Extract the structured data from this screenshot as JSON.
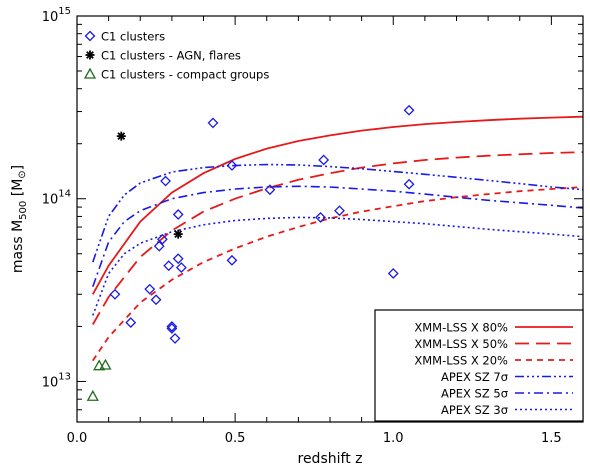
{
  "chart_data": {
    "type": "scatter",
    "xlabel": "redshift z",
    "ylabel": "mass M₅₀₀ [M☉]",
    "ylabel_parts": {
      "prefix": "mass M",
      "sub": "500",
      "suffix": " [M",
      "sym": "⊙",
      "close": "]"
    },
    "xlim": [
      0,
      1.6
    ],
    "ylim": [
      6000000000000.0,
      1000000000000000.0
    ],
    "yscale": "log",
    "x_ticks": [
      0,
      0.5,
      1,
      1.5
    ],
    "x_tick_labels": [
      "0.0",
      "0.5",
      "1.0",
      "1.5"
    ],
    "y_ticks": [
      10000000000000.0,
      100000000000000.0,
      1000000000000000.0
    ],
    "y_tick_labels": [
      {
        "base": "10",
        "exp": "13"
      },
      {
        "base": "10",
        "exp": "14"
      },
      {
        "base": "10",
        "exp": "15"
      }
    ],
    "grid": false,
    "scatter_legend": {
      "placement": "top-left",
      "entries": [
        {
          "label": "C1 clusters",
          "marker": "diamond",
          "color": "#1a1ae6"
        },
        {
          "label": "C1 clusters - AGN, flares",
          "marker": "asterisk",
          "color": "#000000"
        },
        {
          "label": "C1 clusters - compact groups",
          "marker": "triangle",
          "color": "#1e6e1e"
        }
      ]
    },
    "line_legend": {
      "placement": "bottom-right",
      "entries": [
        {
          "label": "XMM-LSS X 80%",
          "color": "#e61a1a",
          "dash": "solid"
        },
        {
          "label": "XMM-LSS X 50%",
          "color": "#e61a1a",
          "dash": "longdash"
        },
        {
          "label": "XMM-LSS X 20%",
          "color": "#e61a1a",
          "dash": "dash"
        },
        {
          "label": "APEX SZ 7σ",
          "color": "#1a1ae6",
          "dash": "dashdotdotdot"
        },
        {
          "label": "APEX SZ 5σ",
          "color": "#1a1ae6",
          "dash": "dashdot"
        },
        {
          "label": "APEX SZ 3σ",
          "color": "#1a1ae6",
          "dash": "dotted"
        }
      ]
    },
    "series": [
      {
        "name": "C1 clusters",
        "marker": "diamond",
        "color": "#1a1ae6",
        "points": [
          [
            0.43,
            260000000000000.0
          ],
          [
            1.05,
            305000000000000.0
          ],
          [
            0.14,
            220000000000000.0
          ],
          [
            0.28,
            125000000000000.0
          ],
          [
            0.49,
            152000000000000.0
          ],
          [
            0.78,
            163000000000000.0
          ],
          [
            0.61,
            112000000000000.0
          ],
          [
            1.05,
            120000000000000.0
          ],
          [
            0.32,
            82000000000000.0
          ],
          [
            0.77,
            79000000000000.0
          ],
          [
            0.83,
            86000000000000.0
          ],
          [
            0.27,
            60000000000000.0
          ],
          [
            0.26,
            55000000000000.0
          ],
          [
            0.32,
            47000000000000.0
          ],
          [
            0.49,
            46000000000000.0
          ],
          [
            0.33,
            42000000000000.0
          ],
          [
            0.29,
            43000000000000.0
          ],
          [
            0.23,
            32000000000000.0
          ],
          [
            0.12,
            30000000000000.0
          ],
          [
            0.25,
            28000000000000.0
          ],
          [
            0.3,
            20000000000000.0
          ],
          [
            0.3,
            19500000000000.0
          ],
          [
            0.17,
            21000000000000.0
          ],
          [
            0.31,
            17200000000000.0
          ],
          [
            1.0,
            39000000000000.0
          ]
        ]
      },
      {
        "name": "C1 clusters - AGN, flares",
        "marker": "asterisk",
        "color": "#000000",
        "points": [
          [
            0.14,
            220000000000000.0
          ],
          [
            0.32,
            64000000000000.0
          ]
        ]
      },
      {
        "name": "C1 clusters - compact groups",
        "marker": "triangle",
        "color": "#1e6e1e",
        "points": [
          [
            0.07,
            12200000000000.0
          ],
          [
            0.09,
            12300000000000.0
          ],
          [
            0.05,
            8300000000000.0
          ]
        ]
      }
    ],
    "curves": [
      {
        "name": "XMM-LSS X 80%",
        "color": "#e61a1a",
        "dash": "solid",
        "points": [
          [
            0.05,
            30000000000000.0
          ],
          [
            0.1,
            43000000000000.0
          ],
          [
            0.2,
            75000000000000.0
          ],
          [
            0.3,
            108000000000000.0
          ],
          [
            0.4,
            138000000000000.0
          ],
          [
            0.5,
            165000000000000.0
          ],
          [
            0.6,
            188000000000000.0
          ],
          [
            0.7,
            207000000000000.0
          ],
          [
            0.8,
            222000000000000.0
          ],
          [
            0.9,
            236000000000000.0
          ],
          [
            1.0,
            247000000000000.0
          ],
          [
            1.1,
            256000000000000.0
          ],
          [
            1.2,
            263000000000000.0
          ],
          [
            1.3,
            269000000000000.0
          ],
          [
            1.4,
            274000000000000.0
          ],
          [
            1.5,
            278000000000000.0
          ],
          [
            1.6,
            281000000000000.0
          ]
        ]
      },
      {
        "name": "XMM-LSS X 50%",
        "color": "#e61a1a",
        "dash": "longdash",
        "points": [
          [
            0.05,
            20500000000000.0
          ],
          [
            0.1,
            29000000000000.0
          ],
          [
            0.2,
            48000000000000.0
          ],
          [
            0.3,
            67000000000000.0
          ],
          [
            0.4,
            85000000000000.0
          ],
          [
            0.5,
            100000000000000.0
          ],
          [
            0.6,
            114000000000000.0
          ],
          [
            0.7,
            127000000000000.0
          ],
          [
            0.8,
            138000000000000.0
          ],
          [
            0.9,
            148000000000000.0
          ],
          [
            1.0,
            156000000000000.0
          ],
          [
            1.1,
            163000000000000.0
          ],
          [
            1.2,
            168000000000000.0
          ],
          [
            1.3,
            172000000000000.0
          ],
          [
            1.4,
            175000000000000.0
          ],
          [
            1.5,
            178000000000000.0
          ],
          [
            1.6,
            180000000000000.0
          ]
        ]
      },
      {
        "name": "XMM-LSS X 20%",
        "color": "#e61a1a",
        "dash": "dash",
        "points": [
          [
            0.05,
            13000000000000.0
          ],
          [
            0.1,
            17500000000000.0
          ],
          [
            0.2,
            27000000000000.0
          ],
          [
            0.3,
            36000000000000.0
          ],
          [
            0.4,
            45000000000000.0
          ],
          [
            0.5,
            53500000000000.0
          ],
          [
            0.6,
            62000000000000.0
          ],
          [
            0.7,
            70000000000000.0
          ],
          [
            0.8,
            78000000000000.0
          ],
          [
            0.9,
            85000000000000.0
          ],
          [
            1.0,
            91000000000000.0
          ],
          [
            1.1,
            97000000000000.0
          ],
          [
            1.2,
            102000000000000.0
          ],
          [
            1.3,
            106000000000000.0
          ],
          [
            1.4,
            110000000000000.0
          ],
          [
            1.5,
            113000000000000.0
          ],
          [
            1.6,
            116000000000000.0
          ]
        ]
      },
      {
        "name": "APEX SZ 7σ",
        "color": "#1a1ae6",
        "dash": "dashdotdotdot",
        "points": [
          [
            0.05,
            45000000000000.0
          ],
          [
            0.1,
            80000000000000.0
          ],
          [
            0.15,
            105000000000000.0
          ],
          [
            0.2,
            122000000000000.0
          ],
          [
            0.3,
            140000000000000.0
          ],
          [
            0.4,
            148000000000000.0
          ],
          [
            0.5,
            152000000000000.0
          ],
          [
            0.6,
            154000000000000.0
          ],
          [
            0.7,
            153000000000000.0
          ],
          [
            0.8,
            150000000000000.0
          ],
          [
            0.9,
            146000000000000.0
          ],
          [
            1.0,
            141000000000000.0
          ],
          [
            1.1,
            136000000000000.0
          ],
          [
            1.2,
            131000000000000.0
          ],
          [
            1.3,
            126000000000000.0
          ],
          [
            1.4,
            121000000000000.0
          ],
          [
            1.5,
            116000000000000.0
          ],
          [
            1.6,
            112000000000000.0
          ]
        ]
      },
      {
        "name": "APEX SZ 5σ",
        "color": "#1a1ae6",
        "dash": "dashdot",
        "points": [
          [
            0.05,
            33000000000000.0
          ],
          [
            0.1,
            58000000000000.0
          ],
          [
            0.15,
            75000000000000.0
          ],
          [
            0.2,
            86000000000000.0
          ],
          [
            0.3,
            100000000000000.0
          ],
          [
            0.4,
            108000000000000.0
          ],
          [
            0.5,
            113000000000000.0
          ],
          [
            0.6,
            116000000000000.0
          ],
          [
            0.7,
            117000000000000.0
          ],
          [
            0.8,
            116000000000000.0
          ],
          [
            0.9,
            113000000000000.0
          ],
          [
            1.0,
            110000000000000.0
          ],
          [
            1.1,
            106000000000000.0
          ],
          [
            1.2,
            102000000000000.0
          ],
          [
            1.3,
            98000000000000.0
          ],
          [
            1.4,
            95000000000000.0
          ],
          [
            1.5,
            92000000000000.0
          ],
          [
            1.6,
            89000000000000.0
          ]
        ]
      },
      {
        "name": "APEX SZ 3σ",
        "color": "#1a1ae6",
        "dash": "dotted",
        "points": [
          [
            0.05,
            23000000000000.0
          ],
          [
            0.1,
            39000000000000.0
          ],
          [
            0.15,
            50000000000000.0
          ],
          [
            0.2,
            57000000000000.0
          ],
          [
            0.3,
            66000000000000.0
          ],
          [
            0.4,
            72000000000000.0
          ],
          [
            0.5,
            76000000000000.0
          ],
          [
            0.6,
            78000000000000.0
          ],
          [
            0.7,
            79000000000000.0
          ],
          [
            0.8,
            78500000000000.0
          ],
          [
            0.9,
            77000000000000.0
          ],
          [
            1.0,
            75000000000000.0
          ],
          [
            1.1,
            73000000000000.0
          ],
          [
            1.2,
            70500000000000.0
          ],
          [
            1.3,
            68000000000000.0
          ],
          [
            1.4,
            66000000000000.0
          ],
          [
            1.5,
            64000000000000.0
          ],
          [
            1.6,
            62000000000000.0
          ]
        ]
      }
    ]
  }
}
